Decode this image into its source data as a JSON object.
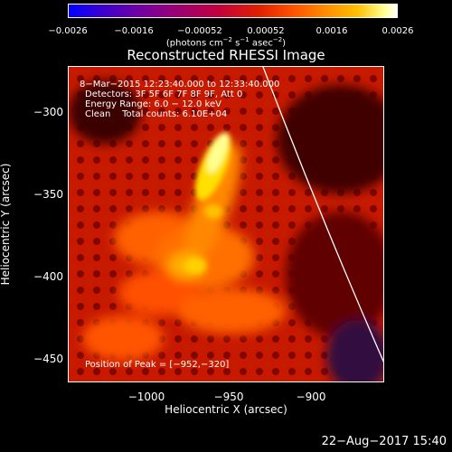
{
  "colorbar": {
    "ticks": [
      "−0.0026",
      "−0.0016",
      "−0.00052",
      "0.00052",
      "0.0016",
      "0.0026"
    ],
    "units_main": "(photons cm",
    "units_exp1": "−2",
    "units_mid1": " s",
    "units_exp2": "−1",
    "units_mid2": " asec",
    "units_exp3": "−2",
    "units_end": ")"
  },
  "title": "Reconstructed RHESSI Image",
  "info": {
    "time": "8−Mar−2015 12:23:40.000 to 12:33:40.000",
    "detectors": "Detectors: 3F 5F 6F 7F 8F 9F, Att 0",
    "energy": "Energy Range: 6.0 − 12.0 keV",
    "clean": "Clean    Total counts: 6.10E+04",
    "peak": "Position of Peak = [−952,−320]"
  },
  "axes": {
    "xticks": [
      "−1000",
      "−950",
      "−900"
    ],
    "yticks": [
      "−300",
      "−350",
      "−400",
      "−450"
    ],
    "xlabel": "Heliocentric X (arcsec)",
    "ylabel": "Heliocentric Y (arcsec)"
  },
  "timestamp": "22−Aug−2017 15:40"
}
